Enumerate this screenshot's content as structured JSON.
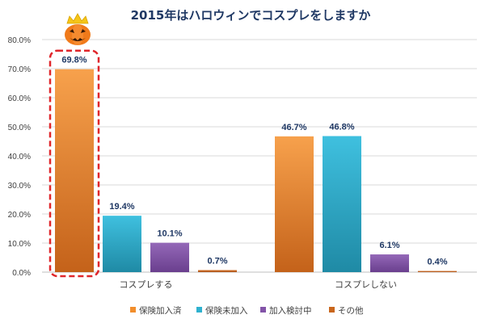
{
  "chart_data": {
    "type": "bar",
    "title": "2015年はハロウィンでコスプレをしますか",
    "categories": [
      "コスプレする",
      "コスプレしない"
    ],
    "series": [
      {
        "name": "保険加入済",
        "values": [
          69.8,
          46.7
        ],
        "color": "#f28e2c"
      },
      {
        "name": "保険未加入",
        "values": [
          19.4,
          46.8
        ],
        "color": "#2fb1cf"
      },
      {
        "name": "加入検討中",
        "values": [
          10.1,
          6.1
        ],
        "color": "#8354a8"
      },
      {
        "name": "その他",
        "values": [
          0.7,
          0.4
        ],
        "color": "#c9661c"
      }
    ],
    "data_labels": [
      [
        "69.8%",
        "19.4%",
        "10.1%",
        "0.7%"
      ],
      [
        "46.7%",
        "46.8%",
        "6.1%",
        "0.4%"
      ]
    ],
    "yticks": [
      "0.0%",
      "10.0%",
      "20.0%",
      "30.0%",
      "40.0%",
      "50.0%",
      "60.0%",
      "70.0%",
      "80.0%"
    ],
    "ylim": [
      0,
      80
    ],
    "grid": true,
    "legend_position": "bottom",
    "highlight": {
      "category": "コスプレする",
      "series": "保険加入済",
      "style": "red dashed outline with pumpkin and crown"
    }
  },
  "colors": {
    "title": "#1f3864",
    "grid": "#d9d9d9",
    "highlight": "#e0262b",
    "pumpkin": "#f07a1a",
    "crown": "#f5c518"
  },
  "decoration": {
    "icon": "pumpkin-crown-icon"
  }
}
